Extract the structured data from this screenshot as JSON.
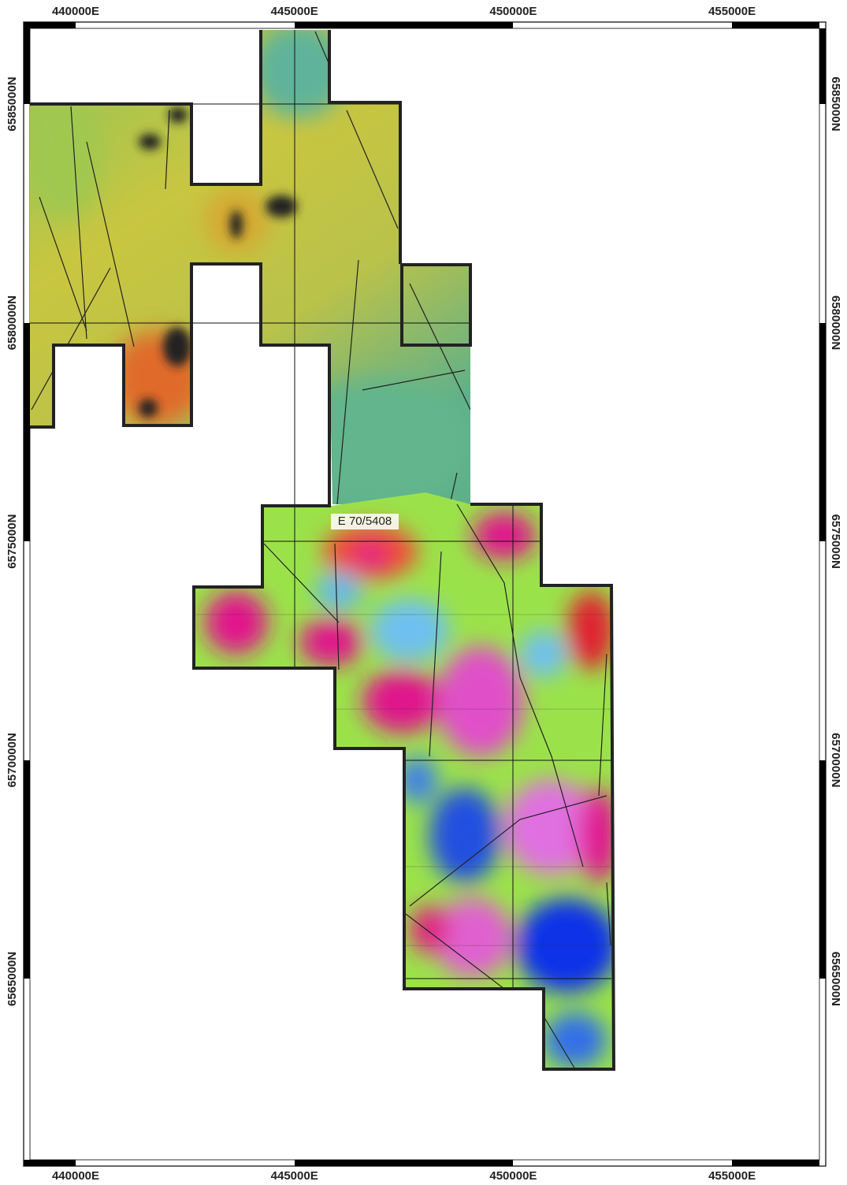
{
  "map": {
    "eastings": [
      "440000E",
      "445000E",
      "450000E",
      "455000E"
    ],
    "northings": [
      "6585000N",
      "6580000N",
      "6575000N",
      "6570000N",
      "6565000N"
    ],
    "tenement": "E 70/5408"
  }
}
